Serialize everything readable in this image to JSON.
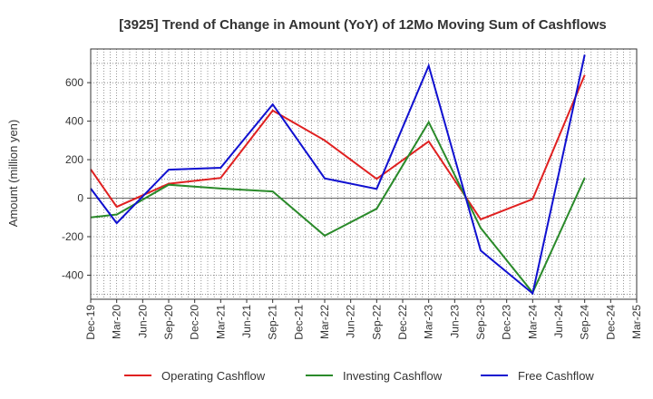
{
  "chart_data": {
    "type": "line",
    "title": "[3925]  Trend of Change in Amount (YoY) of 12Mo Moving Sum of Cashflows",
    "xlabel": "",
    "ylabel": "Amount (million yen)",
    "ylim": [
      -525,
      775
    ],
    "yticks": [
      -400,
      -200,
      0,
      200,
      400,
      600
    ],
    "categories": [
      "Dec-19",
      "Mar-20",
      "Jun-20",
      "Sep-20",
      "Dec-20",
      "Mar-21",
      "Jun-21",
      "Sep-21",
      "Dec-21",
      "Mar-22",
      "Jun-22",
      "Sep-22",
      "Dec-22",
      "Mar-23",
      "Jun-23",
      "Sep-23",
      "Dec-23",
      "Mar-24",
      "Jun-24",
      "Sep-24",
      "Dec-24",
      "Mar-25"
    ],
    "grid": true,
    "legend_position": "bottom",
    "series": [
      {
        "name": "Operating Cashflow",
        "color": "#e02020",
        "values": [
          150,
          -45,
          null,
          75,
          null,
          105,
          null,
          455,
          null,
          300,
          null,
          100,
          null,
          295,
          null,
          -110,
          null,
          -5,
          null,
          640,
          null,
          null
        ]
      },
      {
        "name": "Investing Cashflow",
        "color": "#2a8a2a",
        "values": [
          -100,
          -85,
          null,
          70,
          null,
          50,
          null,
          35,
          null,
          -195,
          null,
          -55,
          null,
          395,
          null,
          -155,
          null,
          -490,
          null,
          105,
          null,
          null
        ]
      },
      {
        "name": "Free Cashflow",
        "color": "#1010d0",
        "values": [
          50,
          -130,
          null,
          148,
          null,
          158,
          null,
          487,
          null,
          103,
          null,
          48,
          null,
          688,
          null,
          -272,
          null,
          -495,
          null,
          745,
          null,
          null
        ]
      }
    ]
  }
}
